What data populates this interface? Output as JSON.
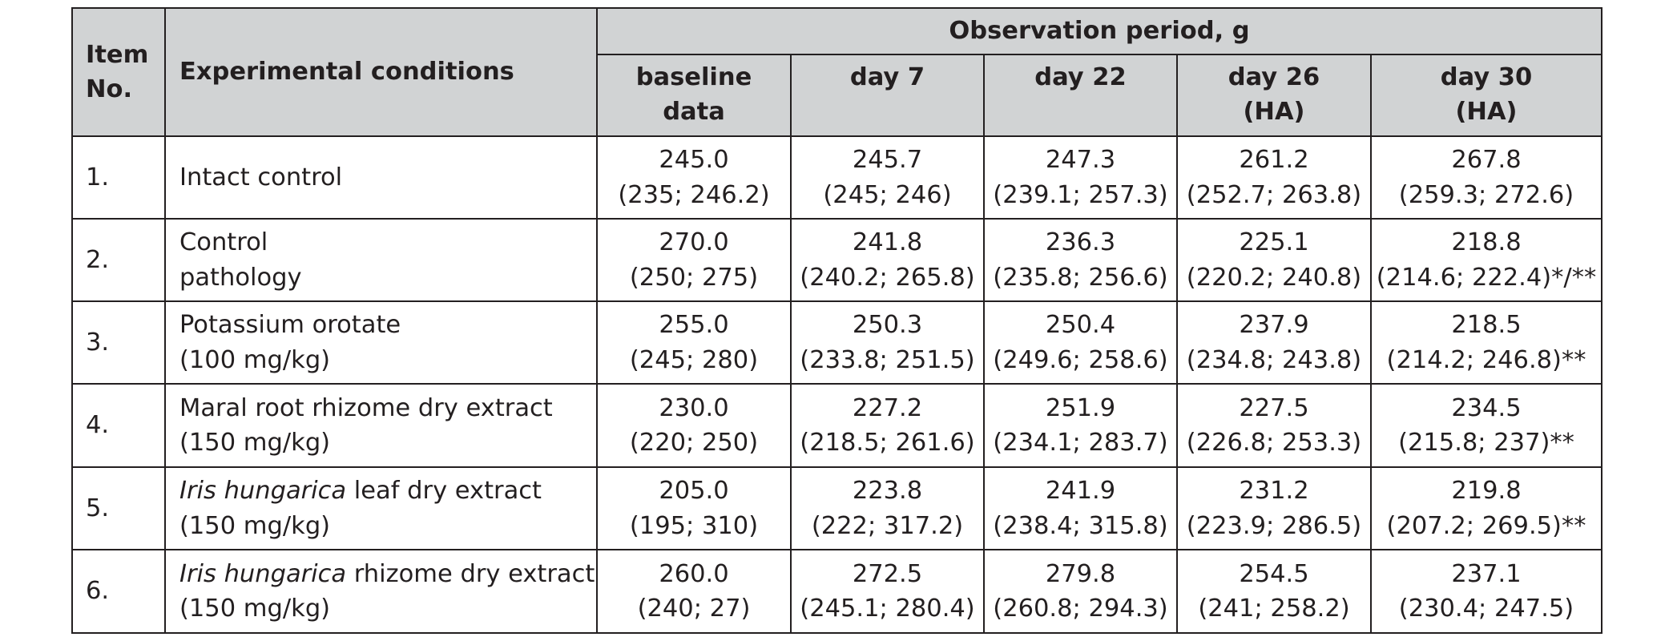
{
  "header": {
    "item_no": [
      "Item",
      "No."
    ],
    "conditions": "Experimental conditions",
    "period": "Observation period, g",
    "columns": [
      [
        "baseline",
        "data"
      ],
      [
        "day 7",
        ""
      ],
      [
        "day 22",
        ""
      ],
      [
        "day 26",
        "(HA)"
      ],
      [
        "day 30",
        "(HA)"
      ]
    ]
  },
  "rows": [
    {
      "no": "1.",
      "cond_italic": "",
      "cond_line1": "Intact control",
      "cond_line2": "",
      "values": [
        [
          "245.0",
          "(235; 246.2)"
        ],
        [
          "245.7",
          "(245; 246)"
        ],
        [
          "247.3",
          "(239.1; 257.3)"
        ],
        [
          "261.2",
          "(252.7; 263.8)"
        ],
        [
          "267.8",
          "(259.3; 272.6)"
        ]
      ]
    },
    {
      "no": "2.",
      "cond_italic": "",
      "cond_line1": "Control",
      "cond_line2": "pathology",
      "values": [
        [
          "270.0",
          "(250; 275)"
        ],
        [
          "241.8",
          "(240.2; 265.8)"
        ],
        [
          "236.3",
          "(235.8; 256.6)"
        ],
        [
          "225.1",
          "(220.2; 240.8)"
        ],
        [
          "218.8",
          "(214.6; 222.4)*/**"
        ]
      ]
    },
    {
      "no": "3.",
      "cond_italic": "",
      "cond_line1": "Potassium orotate",
      "cond_line2": "(100 mg/kg)",
      "values": [
        [
          "255.0",
          "(245; 280)"
        ],
        [
          "250.3",
          "(233.8; 251.5)"
        ],
        [
          "250.4",
          "(249.6; 258.6)"
        ],
        [
          "237.9",
          "(234.8; 243.8)"
        ],
        [
          "218.5",
          "(214.2; 246.8)**"
        ]
      ]
    },
    {
      "no": "4.",
      "cond_italic": "",
      "cond_line1": "Maral root rhizome dry extract",
      "cond_line2": "(150 mg/kg)",
      "values": [
        [
          "230.0",
          "(220; 250)"
        ],
        [
          "227.2",
          "(218.5; 261.6)"
        ],
        [
          "251.9",
          "(234.1; 283.7)"
        ],
        [
          "227.5",
          "(226.8; 253.3)"
        ],
        [
          "234.5",
          "(215.8; 237)**"
        ]
      ]
    },
    {
      "no": "5.",
      "cond_italic": "Iris hungarica",
      "cond_line1": " leaf dry extract",
      "cond_line2": "(150 mg/kg)",
      "values": [
        [
          "205.0",
          "(195; 310)"
        ],
        [
          "223.8",
          "(222; 317.2)"
        ],
        [
          "241.9",
          "(238.4; 315.8)"
        ],
        [
          "231.2",
          "(223.9; 286.5)"
        ],
        [
          "219.8",
          "(207.2; 269.5)**"
        ]
      ]
    },
    {
      "no": "6.",
      "cond_italic": "Iris hungarica",
      "cond_line1": " rhizome dry extract",
      "cond_line2": "(150 mg/kg)",
      "values": [
        [
          "260.0",
          "(240; 27)"
        ],
        [
          "272.5",
          "(245.1; 280.4)"
        ],
        [
          "279.8",
          "(260.8; 294.3)"
        ],
        [
          "254.5",
          "(241; 258.2)"
        ],
        [
          "237.1",
          "(230.4; 247.5)"
        ]
      ]
    }
  ]
}
